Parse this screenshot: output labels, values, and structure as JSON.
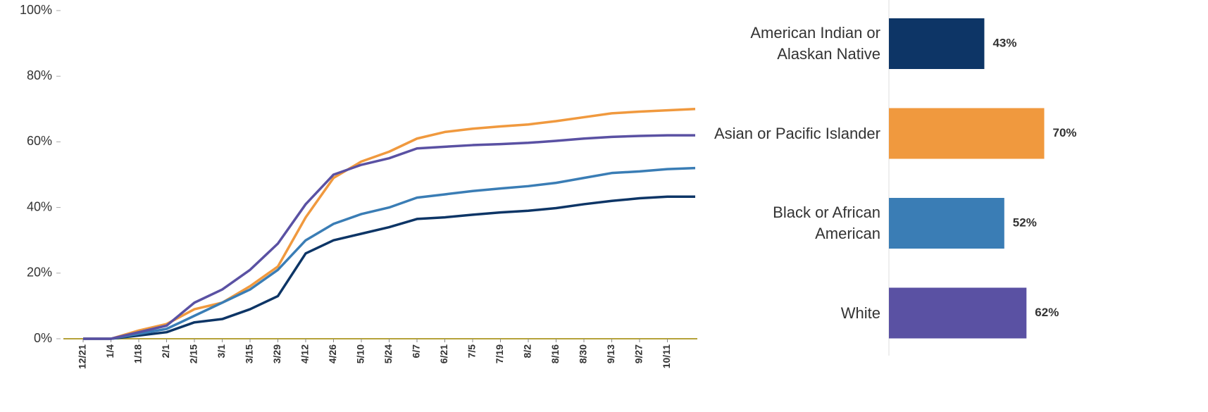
{
  "chart_data": [
    {
      "type": "line",
      "categories": [
        "12/21",
        "1/4",
        "1/18",
        "2/1",
        "2/15",
        "3/1",
        "3/15",
        "3/29",
        "4/12",
        "4/26",
        "5/10",
        "5/24",
        "6/7",
        "6/21",
        "7/5",
        "7/19",
        "8/2",
        "8/16",
        "8/30",
        "9/13",
        "9/27",
        "10/11",
        null
      ],
      "series": [
        {
          "color": "#0d3566",
          "values": [
            0,
            0,
            1,
            2,
            5,
            6,
            9,
            13,
            26,
            30,
            32,
            34,
            36.5,
            37,
            37.8,
            38.5,
            39,
            39.8,
            41,
            42,
            42.8,
            43.3,
            43.3
          ]
        },
        {
          "color": "#f0993e",
          "values": [
            0,
            0,
            2.5,
            4.5,
            9,
            11,
            16,
            22,
            37,
            49,
            54,
            57,
            61,
            63,
            64,
            64.7,
            65.3,
            66.3,
            67.5,
            68.7,
            69.2,
            69.6,
            70
          ]
        },
        {
          "color": "#3a7db5",
          "values": [
            0,
            0,
            1.5,
            3,
            7,
            11,
            15,
            21,
            30,
            35,
            38,
            40,
            43,
            44,
            45,
            45.8,
            46.5,
            47.5,
            49,
            50.5,
            51,
            51.7,
            52
          ]
        },
        {
          "color": "#5a51a3",
          "values": [
            0,
            0,
            2,
            4,
            11,
            15,
            21,
            29,
            41,
            50,
            53,
            55,
            58,
            58.5,
            59,
            59.3,
            59.7,
            60.3,
            61,
            61.5,
            61.8,
            62,
            62
          ]
        }
      ],
      "ylim": [
        0,
        100
      ],
      "yticks": [
        {
          "value": 0,
          "label": "0%"
        },
        {
          "value": 20,
          "label": "20%"
        },
        {
          "value": 40,
          "label": "40%"
        },
        {
          "value": 60,
          "label": "60%"
        },
        {
          "value": 80,
          "label": "80%"
        },
        {
          "value": 100,
          "label": "100%"
        }
      ],
      "grid": false
    },
    {
      "type": "hbar",
      "categories": [
        "American Indian or Alaskan Native",
        "Asian or Pacific Islander",
        "Black or African American",
        "White"
      ],
      "values": [
        43,
        70,
        52,
        62
      ],
      "value_labels": [
        "43%",
        "70%",
        "52%",
        "62%"
      ],
      "colors": [
        "#0d3566",
        "#f0993e",
        "#3a7db5",
        "#5a51a3"
      ]
    }
  ]
}
